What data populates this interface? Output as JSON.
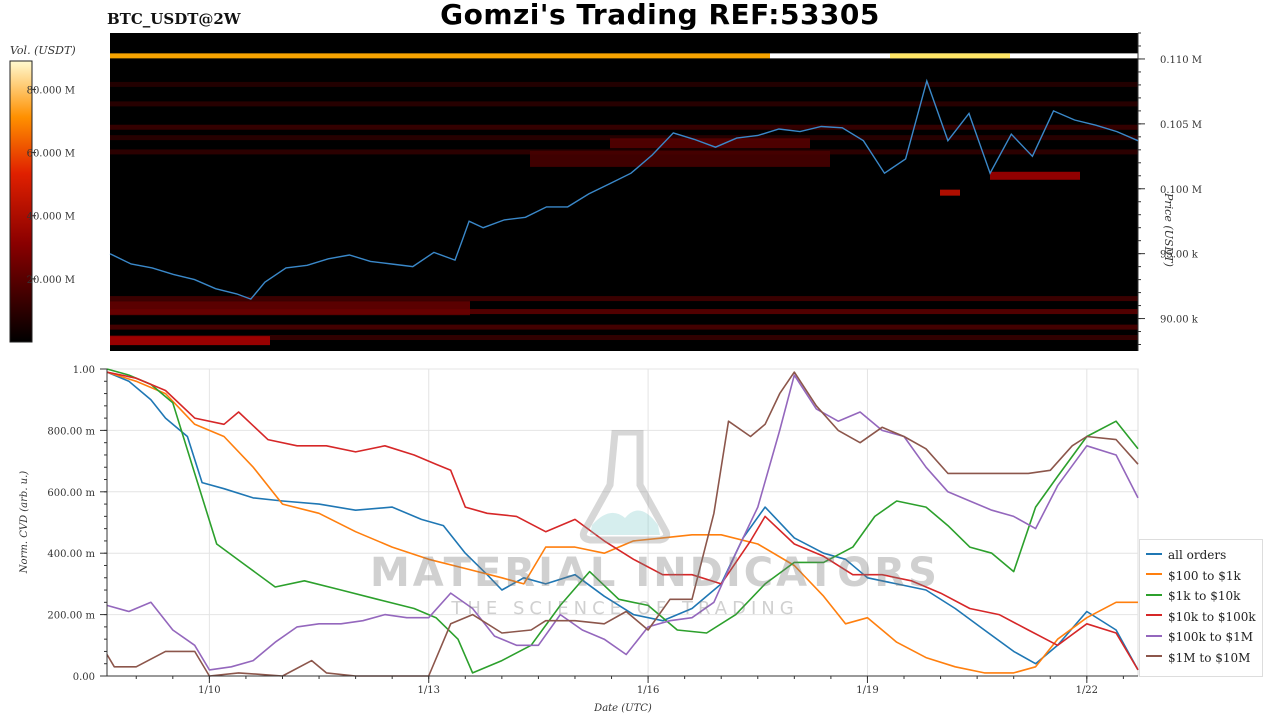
{
  "header": {
    "pair": "BTC_USDT@2W",
    "title": "Gomzi's Trading REF:53305"
  },
  "watermark": {
    "brand": "MATERIAL INDICATORS",
    "tagline": "THE SCIENCE OF TRADING"
  },
  "chart_data": [
    {
      "type": "heatmap",
      "title": "",
      "ylabel": "Price (USDT)",
      "colorbar_label": "Vol. (USDT)",
      "colorbar_ticks": [
        "80.000 M",
        "60.000 M",
        "40.000 M",
        "20.000 M"
      ],
      "colorbar_values": [
        80000000,
        60000000,
        40000000,
        20000000
      ],
      "y_ticks": [
        "0.110 M",
        "0.105 M",
        "0.100 M",
        "95.00 k",
        "90.00 k"
      ],
      "y_tick_values": [
        110000,
        105000,
        100000,
        95000,
        90000
      ],
      "ylim": [
        87500,
        112000
      ],
      "x_ticks": [
        "1/10",
        "1/13",
        "1/16",
        "1/19",
        "1/22"
      ],
      "price_series": {
        "name": "",
        "color": "#3a88c9",
        "x": [
          0,
          0.3,
          0.6,
          0.9,
          1.2,
          1.5,
          1.8,
          2.0,
          2.2,
          2.5,
          2.8,
          3.1,
          3.4,
          3.7,
          4.0,
          4.3,
          4.6,
          4.9,
          5.0,
          5.1,
          5.3,
          5.6,
          5.9,
          6.2,
          6.5,
          6.8,
          7.1,
          7.4,
          7.7,
          8.0,
          8.3,
          8.6,
          8.9,
          9.2,
          9.5,
          9.8,
          10.1,
          10.4,
          10.7,
          11.0,
          11.3,
          11.6,
          11.9,
          12.2,
          12.5,
          12.8,
          13.1,
          13.4,
          13.7,
          14.0,
          14.3,
          14.6
        ],
        "y": [
          95000,
          94200,
          93900,
          93400,
          93000,
          92300,
          91900,
          91500,
          92800,
          93900,
          94100,
          94600,
          94900,
          94400,
          94200,
          94000,
          95100,
          94500,
          96000,
          97500,
          97000,
          97600,
          97800,
          98600,
          98600,
          99600,
          100400,
          101200,
          102600,
          104300,
          103800,
          103200,
          103900,
          104100,
          104600,
          104400,
          104800,
          104700,
          103700,
          101200,
          102300,
          108300,
          103700,
          105800,
          101200,
          104200,
          102500,
          106000,
          105300,
          104900,
          104400,
          103700
        ]
      }
    },
    {
      "type": "line",
      "title": "",
      "xlabel": "Date (UTC)",
      "ylabel": "Norm. CVD (arb. u.)",
      "ylim": [
        0,
        1
      ],
      "y_ticks": [
        "1.00",
        "800.00 m",
        "600.00 m",
        "400.00 m",
        "200.00 m",
        "0.00"
      ],
      "y_tick_values": [
        1.0,
        0.8,
        0.6,
        0.4,
        0.2,
        0.0
      ],
      "x_ticks": [
        "1/10",
        "1/13",
        "1/16",
        "1/19",
        "1/22"
      ],
      "x_tick_values": [
        10,
        13,
        16,
        19,
        22
      ],
      "xlim": [
        8.6,
        22.7
      ],
      "series": [
        {
          "name": "all orders",
          "color": "#1f77b4",
          "x": [
            8.6,
            8.9,
            9.2,
            9.4,
            9.7,
            9.9,
            10.2,
            10.6,
            11.0,
            11.5,
            12.0,
            12.5,
            12.9,
            13.2,
            13.5,
            13.8,
            14.0,
            14.3,
            14.6,
            15.0,
            15.4,
            15.8,
            16.2,
            16.6,
            17.0,
            17.3,
            17.6,
            18.0,
            18.4,
            18.7,
            19.0,
            19.4,
            19.8,
            20.2,
            20.6,
            21.0,
            21.3,
            21.6,
            22.0,
            22.4,
            22.7
          ],
          "y": [
            0.99,
            0.96,
            0.9,
            0.84,
            0.78,
            0.63,
            0.61,
            0.58,
            0.57,
            0.56,
            0.54,
            0.55,
            0.51,
            0.49,
            0.4,
            0.33,
            0.28,
            0.32,
            0.3,
            0.33,
            0.26,
            0.2,
            0.18,
            0.22,
            0.3,
            0.45,
            0.55,
            0.45,
            0.4,
            0.38,
            0.32,
            0.3,
            0.28,
            0.22,
            0.15,
            0.08,
            0.04,
            0.1,
            0.21,
            0.15,
            0.02
          ]
        },
        {
          "name": "$100 to $1k",
          "color": "#ff7f0e",
          "x": [
            8.6,
            9.0,
            9.4,
            9.8,
            10.2,
            10.6,
            11.0,
            11.5,
            12.0,
            12.5,
            13.0,
            13.5,
            14.0,
            14.3,
            14.6,
            15.0,
            15.4,
            15.8,
            16.2,
            16.6,
            17.0,
            17.5,
            18.0,
            18.4,
            18.7,
            19.0,
            19.4,
            19.8,
            20.2,
            20.6,
            21.0,
            21.3,
            21.6,
            22.0,
            22.4,
            22.7
          ],
          "y": [
            0.99,
            0.96,
            0.92,
            0.82,
            0.78,
            0.68,
            0.56,
            0.53,
            0.47,
            0.42,
            0.38,
            0.35,
            0.32,
            0.3,
            0.42,
            0.42,
            0.4,
            0.44,
            0.45,
            0.46,
            0.46,
            0.43,
            0.36,
            0.26,
            0.17,
            0.19,
            0.11,
            0.06,
            0.03,
            0.01,
            0.01,
            0.03,
            0.12,
            0.19,
            0.24,
            0.24
          ]
        },
        {
          "name": "$1k to $10k",
          "color": "#2ca02c",
          "x": [
            8.6,
            8.9,
            9.2,
            9.5,
            9.8,
            10.1,
            10.5,
            10.9,
            11.3,
            11.8,
            12.3,
            12.8,
            13.1,
            13.4,
            13.6,
            14.0,
            14.4,
            14.8,
            15.2,
            15.6,
            16.0,
            16.4,
            16.8,
            17.2,
            17.6,
            18.0,
            18.4,
            18.8,
            19.1,
            19.4,
            19.8,
            20.1,
            20.4,
            20.7,
            21.0,
            21.3,
            21.6,
            22.0,
            22.4,
            22.7
          ],
          "y": [
            1.0,
            0.98,
            0.95,
            0.89,
            0.66,
            0.43,
            0.36,
            0.29,
            0.31,
            0.28,
            0.25,
            0.22,
            0.19,
            0.12,
            0.01,
            0.05,
            0.1,
            0.23,
            0.34,
            0.25,
            0.23,
            0.15,
            0.14,
            0.2,
            0.3,
            0.37,
            0.37,
            0.42,
            0.52,
            0.57,
            0.55,
            0.49,
            0.42,
            0.4,
            0.34,
            0.55,
            0.65,
            0.78,
            0.83,
            0.74
          ]
        },
        {
          "name": "$10k to $100k",
          "color": "#d62728",
          "x": [
            8.6,
            9.0,
            9.4,
            9.8,
            10.2,
            10.4,
            10.8,
            11.2,
            11.6,
            12.0,
            12.4,
            12.8,
            13.1,
            13.3,
            13.5,
            13.8,
            14.2,
            14.6,
            15.0,
            15.4,
            15.8,
            16.2,
            16.6,
            17.0,
            17.4,
            17.6,
            18.0,
            18.4,
            18.8,
            19.2,
            19.6,
            20.0,
            20.4,
            20.8,
            21.2,
            21.6,
            22.0,
            22.4,
            22.7
          ],
          "y": [
            0.99,
            0.97,
            0.93,
            0.84,
            0.82,
            0.86,
            0.77,
            0.75,
            0.75,
            0.73,
            0.75,
            0.72,
            0.69,
            0.67,
            0.55,
            0.53,
            0.52,
            0.47,
            0.51,
            0.44,
            0.38,
            0.33,
            0.33,
            0.3,
            0.44,
            0.52,
            0.43,
            0.39,
            0.33,
            0.33,
            0.31,
            0.27,
            0.22,
            0.2,
            0.15,
            0.1,
            0.17,
            0.14,
            0.02
          ]
        },
        {
          "name": "$100k to $1M",
          "color": "#9467bd",
          "x": [
            8.6,
            8.9,
            9.2,
            9.5,
            9.8,
            10.0,
            10.3,
            10.6,
            10.9,
            11.2,
            11.5,
            11.8,
            12.1,
            12.4,
            12.7,
            13.0,
            13.3,
            13.6,
            13.9,
            14.2,
            14.5,
            14.8,
            15.1,
            15.4,
            15.7,
            16.0,
            16.3,
            16.6,
            16.9,
            17.2,
            17.5,
            17.8,
            18.0,
            18.3,
            18.6,
            18.9,
            19.2,
            19.5,
            19.8,
            20.1,
            20.4,
            20.7,
            21.0,
            21.3,
            21.6,
            22.0,
            22.4,
            22.7
          ],
          "y": [
            0.23,
            0.21,
            0.24,
            0.15,
            0.1,
            0.02,
            0.03,
            0.05,
            0.11,
            0.16,
            0.17,
            0.17,
            0.18,
            0.2,
            0.19,
            0.19,
            0.27,
            0.22,
            0.13,
            0.1,
            0.1,
            0.2,
            0.15,
            0.12,
            0.07,
            0.16,
            0.18,
            0.19,
            0.24,
            0.4,
            0.55,
            0.8,
            0.98,
            0.87,
            0.83,
            0.86,
            0.8,
            0.78,
            0.68,
            0.6,
            0.57,
            0.54,
            0.52,
            0.48,
            0.62,
            0.75,
            0.72,
            0.58
          ]
        },
        {
          "name": "$1M to $10M",
          "color": "#8c564b",
          "x": [
            8.6,
            8.7,
            9.0,
            9.4,
            9.8,
            10.0,
            10.4,
            11.0,
            11.4,
            11.6,
            12.0,
            13.0,
            13.3,
            13.6,
            14.0,
            14.4,
            14.6,
            15.0,
            15.4,
            15.7,
            16.0,
            16.3,
            16.6,
            16.9,
            17.1,
            17.4,
            17.6,
            17.8,
            18.0,
            18.3,
            18.6,
            18.9,
            19.2,
            19.5,
            19.8,
            20.1,
            20.4,
            20.8,
            21.2,
            21.5,
            21.8,
            22.0,
            22.4,
            22.7
          ],
          "y": [
            0.07,
            0.03,
            0.03,
            0.08,
            0.08,
            0.0,
            0.01,
            0.0,
            0.05,
            0.01,
            0.0,
            0.0,
            0.17,
            0.2,
            0.14,
            0.15,
            0.18,
            0.18,
            0.17,
            0.21,
            0.15,
            0.25,
            0.25,
            0.53,
            0.83,
            0.78,
            0.82,
            0.92,
            0.99,
            0.88,
            0.8,
            0.76,
            0.81,
            0.78,
            0.74,
            0.66,
            0.66,
            0.66,
            0.66,
            0.67,
            0.75,
            0.78,
            0.77,
            0.69
          ]
        }
      ]
    }
  ]
}
